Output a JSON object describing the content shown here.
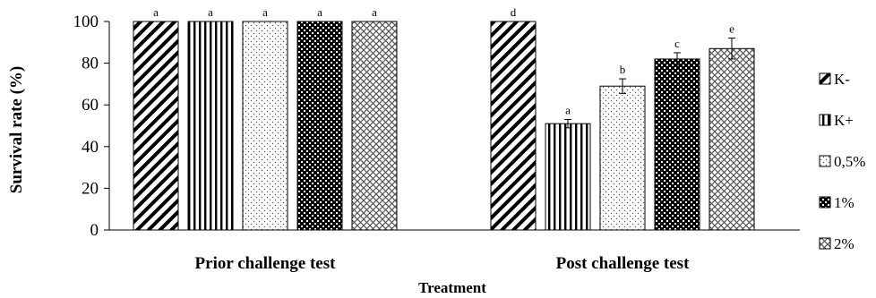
{
  "chart_data": {
    "type": "bar",
    "categories": [
      "Prior challenge test",
      "Post challenge test"
    ],
    "series": [
      {
        "name": "K-",
        "pattern": "diag-down",
        "values": [
          100,
          100
        ],
        "errors": [
          0,
          0
        ],
        "letters": [
          "a",
          "d"
        ]
      },
      {
        "name": "K+",
        "pattern": "vertical",
        "values": [
          100,
          51
        ],
        "errors": [
          0,
          2
        ],
        "letters": [
          "a",
          "a"
        ]
      },
      {
        "name": "0,5%",
        "pattern": "dots",
        "values": [
          100,
          69
        ],
        "errors": [
          0,
          3.5
        ],
        "letters": [
          "a",
          "b"
        ]
      },
      {
        "name": "1%",
        "pattern": "dense",
        "values": [
          100,
          82
        ],
        "errors": [
          0,
          3
        ],
        "letters": [
          "a",
          "c"
        ]
      },
      {
        "name": "2%",
        "pattern": "crosshatch",
        "values": [
          100,
          87
        ],
        "errors": [
          0,
          5
        ],
        "letters": [
          "a",
          "e"
        ]
      }
    ],
    "xlabel": "Treatment",
    "ylabel": "Survival rate (%)",
    "ylim": [
      0,
      100
    ],
    "yticks": [
      0,
      20,
      40,
      60,
      80,
      100
    ],
    "grid": false,
    "legend": "right"
  }
}
